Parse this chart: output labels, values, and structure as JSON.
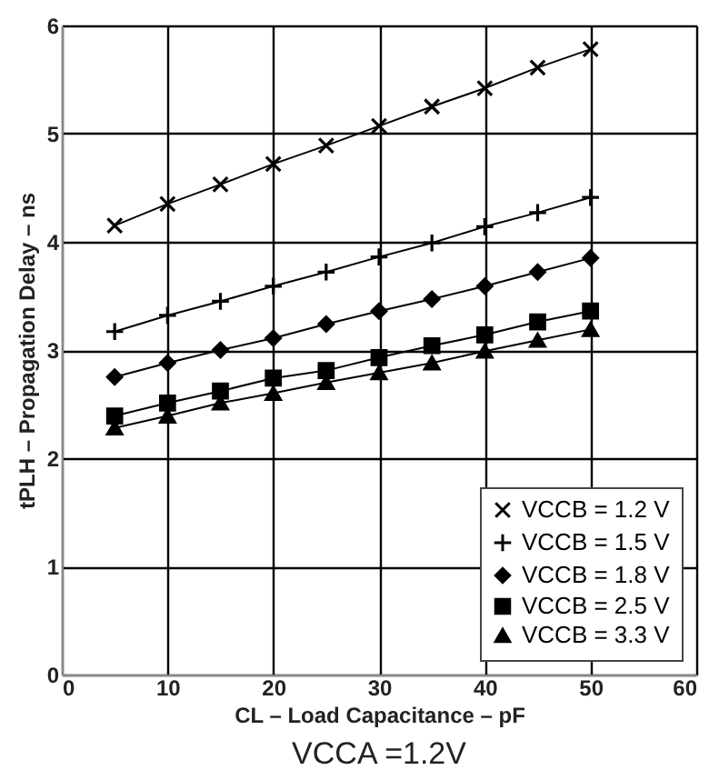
{
  "chart_data": {
    "type": "line",
    "title": "VCCA =1.2V",
    "xlabel": "CL – Load Capacitance – pF",
    "ylabel": "tPLH – Propagation Delay – ns",
    "x": [
      5,
      10,
      15,
      20,
      25,
      30,
      35,
      40,
      45,
      50
    ],
    "series": [
      {
        "name": "VCCB = 1.2 V",
        "color": "#000000",
        "marker": "x",
        "values": [
          4.15,
          4.35,
          4.53,
          4.72,
          4.89,
          5.07,
          5.25,
          5.42,
          5.61,
          5.78
        ]
      },
      {
        "name": "VCCB = 1.5 V",
        "color": "#000000",
        "marker": "cross",
        "values": [
          3.17,
          3.32,
          3.45,
          3.59,
          3.72,
          3.86,
          3.99,
          4.14,
          4.27,
          4.41
        ]
      },
      {
        "name": "VCCB = 1.8 V",
        "color": "#000000",
        "marker": "diamond",
        "values": [
          2.75,
          2.88,
          3.0,
          3.11,
          3.24,
          3.36,
          3.47,
          3.59,
          3.72,
          3.85
        ]
      },
      {
        "name": "VCCB = 2.5 V",
        "color": "#000000",
        "marker": "square",
        "values": [
          2.39,
          2.51,
          2.62,
          2.74,
          2.81,
          2.93,
          3.04,
          3.14,
          3.26,
          3.36
        ]
      },
      {
        "name": "VCCB = 3.3 V",
        "color": "#000000",
        "marker": "triangle",
        "values": [
          2.28,
          2.39,
          2.51,
          2.6,
          2.7,
          2.79,
          2.88,
          2.99,
          3.09,
          3.19
        ]
      }
    ],
    "xlim": [
      0,
      60
    ],
    "xticks": [
      0,
      10,
      20,
      30,
      40,
      50,
      60
    ],
    "ylim": [
      0,
      6
    ],
    "yticks": [
      0,
      1,
      2,
      3,
      4,
      5,
      6
    ],
    "grid": true,
    "legend": "bottom right",
    "line_style": "solid"
  }
}
